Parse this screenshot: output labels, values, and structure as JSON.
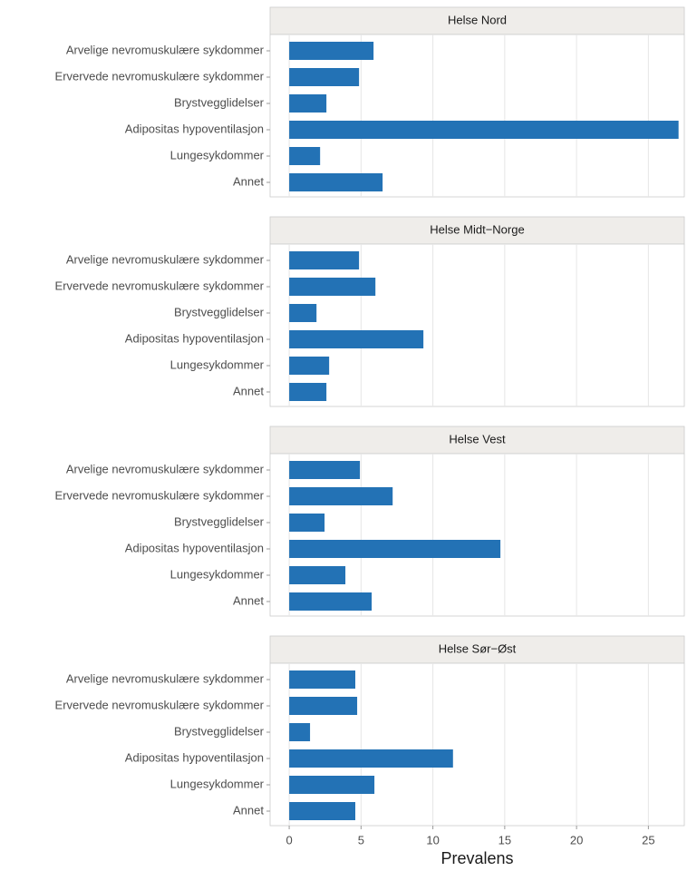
{
  "chart_data": [
    {
      "type": "bar",
      "title": "Helse Nord",
      "categories": [
        "Arvelige nevromuskulære sykdommer",
        "Ervervede nevromuskulære sykdommer",
        "Brystvegglidelser",
        "Adipositas hypoventilasjon",
        "Lungesykdommer",
        "Annet"
      ],
      "values": [
        5.87,
        4.86,
        2.59,
        27.1,
        2.15,
        6.5
      ],
      "color": "#2372b5",
      "xlim": [
        -1.33,
        27.5
      ],
      "xticks": [
        0,
        5,
        10,
        15,
        20,
        25
      ],
      "grid": true
    },
    {
      "type": "bar",
      "title": "Helse Midt−Norge",
      "categories": [
        "Arvelige nevromuskulære sykdommer",
        "Ervervede nevromuskulære sykdommer",
        "Brystvegglidelser",
        "Adipositas hypoventilasjon",
        "Lungesykdommer",
        "Annet"
      ],
      "values": [
        4.86,
        6.0,
        1.9,
        9.34,
        2.78,
        2.59
      ],
      "color": "#2372b5",
      "xlim": [
        -1.33,
        27.5
      ],
      "xticks": [
        0,
        5,
        10,
        15,
        20,
        25
      ],
      "grid": true
    },
    {
      "type": "bar",
      "title": "Helse Vest",
      "categories": [
        "Arvelige nevromuskulære sykdommer",
        "Ervervede nevromuskulære sykdommer",
        "Brystvegglidelser",
        "Adipositas hypoventilasjon",
        "Lungesykdommer",
        "Annet"
      ],
      "values": [
        4.92,
        7.2,
        2.46,
        14.7,
        3.91,
        5.74
      ],
      "color": "#2372b5",
      "xlim": [
        -1.33,
        27.5
      ],
      "xticks": [
        0,
        5,
        10,
        15,
        20,
        25
      ],
      "grid": true
    },
    {
      "type": "bar",
      "title": "Helse Sør−Øst",
      "categories": [
        "Arvelige nevromuskulære sykdommer",
        "Ervervede nevromuskulære sykdommer",
        "Brystvegglidelser",
        "Adipositas hypoventilasjon",
        "Lungesykdommer",
        "Annet"
      ],
      "values": [
        4.6,
        4.73,
        1.45,
        11.4,
        5.93,
        4.6
      ],
      "color": "#2372b5",
      "xlim": [
        -1.33,
        27.5
      ],
      "xticks": [
        0,
        5,
        10,
        15,
        20,
        25
      ],
      "grid": true,
      "xlabel": "Prevalens"
    }
  ]
}
